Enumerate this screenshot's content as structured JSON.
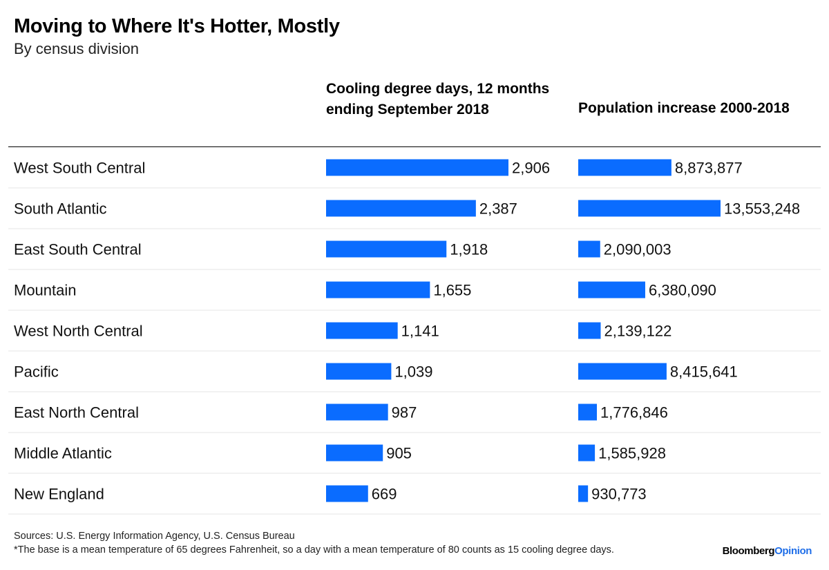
{
  "header": {
    "title": "Moving to Where It's Hotter, Mostly",
    "subtitle": "By census division",
    "col1_label": "Cooling degree days, 12 months ending September 2018",
    "col2_label": "Population increase 2000-2018"
  },
  "chart_data": {
    "type": "bar",
    "orientation": "horizontal",
    "title": "Moving to Where It's Hotter, Mostly",
    "subtitle": "By census division",
    "categories": [
      "West South Central",
      "South Atlantic",
      "East South Central",
      "Mountain",
      "West North Central",
      "Pacific",
      "East North Central",
      "Middle Atlantic",
      "New England"
    ],
    "series": [
      {
        "name": "Cooling degree days, 12 months ending September 2018",
        "values": [
          2906,
          2387,
          1918,
          1655,
          1141,
          1039,
          987,
          905,
          669
        ],
        "labels": [
          "2,906",
          "2,387",
          "1,918",
          "1,655",
          "1,141",
          "1,039",
          "987",
          "905",
          "669"
        ],
        "color": "#0a6cff"
      },
      {
        "name": "Population increase 2000-2018",
        "values": [
          8873877,
          13553248,
          2090003,
          6380090,
          2139122,
          8415641,
          1776846,
          1585928,
          930773
        ],
        "labels": [
          "8,873,877",
          "13,553,248",
          "2,090,003",
          "6,380,090",
          "2,139,122",
          "8,415,641",
          "1,776,846",
          "1,585,928",
          "930,773"
        ],
        "color": "#0a6cff"
      }
    ],
    "grid": false,
    "legend": "none"
  },
  "footer": {
    "sources": "Sources: U.S. Energy Information Agency, U.S. Census Bureau",
    "note": "*The base is a mean temperature of 65 degrees Fahrenheit, so a day with a mean temperature of 80 counts as 15 cooling degree days.",
    "brand_part1": "Bloomberg",
    "brand_part2": "Opinion"
  }
}
